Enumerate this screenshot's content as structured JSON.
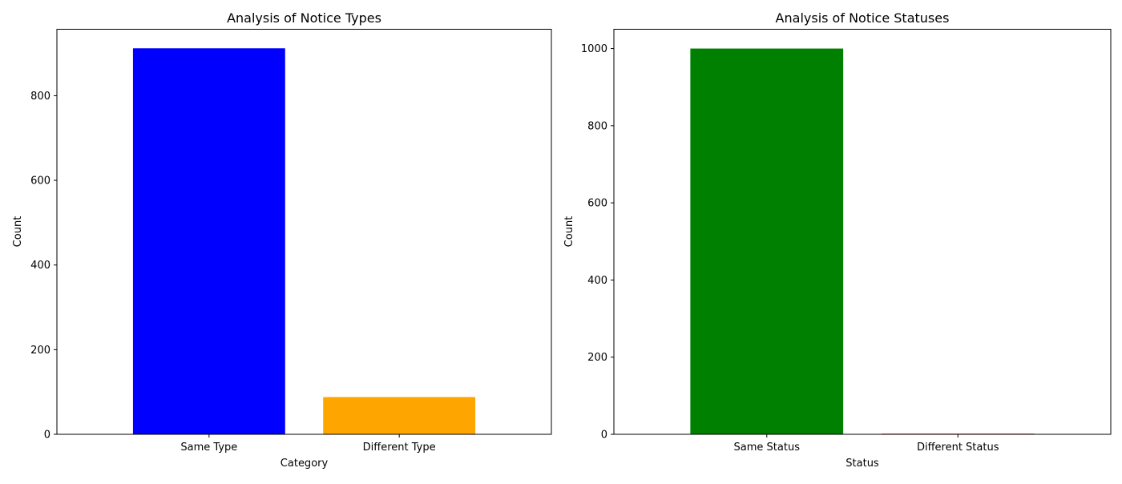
{
  "chart_data": [
    {
      "type": "bar",
      "title": "Analysis of Notice Types",
      "xlabel": "Category",
      "ylabel": "Count",
      "categories": [
        "Same Type",
        "Different Type"
      ],
      "values": [
        912,
        88
      ],
      "colors": [
        "#0000ff",
        "#ffa500"
      ],
      "ylim": [
        0,
        957
      ],
      "yticks": [
        0,
        200,
        400,
        600,
        800
      ],
      "ytick_labels": [
        "0",
        "200",
        "400",
        "600",
        "800"
      ],
      "grid": false,
      "legend": "none"
    },
    {
      "type": "bar",
      "title": "Analysis of Notice Statuses",
      "xlabel": "Status",
      "ylabel": "Count",
      "categories": [
        "Same Status",
        "Different Status"
      ],
      "values": [
        1000,
        0
      ],
      "colors": [
        "#008000",
        "#ff0000"
      ],
      "ylim": [
        0,
        1050
      ],
      "yticks": [
        0,
        200,
        400,
        600,
        800,
        1000
      ],
      "ytick_labels": [
        "0",
        "200",
        "400",
        "600",
        "800",
        "1000"
      ],
      "grid": false,
      "legend": "none"
    }
  ]
}
